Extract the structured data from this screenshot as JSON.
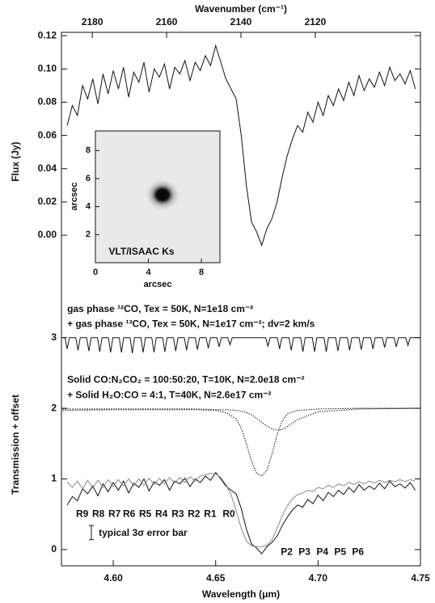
{
  "chart_data": [
    {
      "type": "line",
      "x2label": "Wavenumber (cm⁻¹)",
      "ylabel": "Flux (Jy)",
      "xlim": [
        4.5747,
        4.75
      ],
      "x2lim": [
        2188.3,
        2091.7
      ],
      "x2ticks": [
        2180,
        2160,
        2140,
        2120
      ],
      "ylim": [
        -0.0335,
        0.122
      ],
      "yticks": [
        {
          "value": 0.0,
          "label": "0.00"
        },
        {
          "value": 0.02,
          "label": "0.02"
        },
        {
          "value": 0.04,
          "label": "0.04"
        },
        {
          "value": 0.06,
          "label": "0.06"
        },
        {
          "value": 0.08,
          "label": "0.08"
        },
        {
          "value": 0.1,
          "label": "0.10"
        },
        {
          "value": 0.12,
          "label": "0.12"
        }
      ],
      "series": [
        {
          "color": "#111111",
          "style": "solid",
          "x": [
            4.5775,
            4.58,
            4.5825,
            4.585,
            4.5875,
            4.59,
            4.5925,
            4.595,
            4.5975,
            4.6,
            4.6025,
            4.605,
            4.6075,
            4.61,
            4.6125,
            4.615,
            4.6175,
            4.62,
            4.6225,
            4.625,
            4.6275,
            4.63,
            4.6325,
            4.635,
            4.6375,
            4.64,
            4.6425,
            4.645,
            4.6475,
            4.65,
            4.6525,
            4.655,
            4.6575,
            4.66,
            4.6625,
            4.665,
            4.6675,
            4.67,
            4.6725,
            4.675,
            4.6775,
            4.68,
            4.6825,
            4.685,
            4.6875,
            4.69,
            4.6925,
            4.695,
            4.6975,
            4.7,
            4.7025,
            4.705,
            4.7075,
            4.71,
            4.7125,
            4.715,
            4.7175,
            4.72,
            4.7225,
            4.725,
            4.7275,
            4.73,
            4.7325,
            4.735,
            4.7375,
            4.74,
            4.7425,
            4.745,
            4.7475
          ],
          "values": [
            0.066,
            0.078,
            0.072,
            0.09,
            0.082,
            0.094,
            0.079,
            0.097,
            0.085,
            0.099,
            0.088,
            0.101,
            0.083,
            0.098,
            0.092,
            0.104,
            0.086,
            0.1,
            0.095,
            0.103,
            0.088,
            0.101,
            0.097,
            0.105,
            0.093,
            0.104,
            0.099,
            0.108,
            0.102,
            0.114,
            0.104,
            0.094,
            0.088,
            0.082,
            0.06,
            0.03,
            0.008,
            0.002,
            -0.006,
            0.004,
            0.01,
            0.02,
            0.035,
            0.048,
            0.058,
            0.066,
            0.062,
            0.074,
            0.068,
            0.08,
            0.072,
            0.084,
            0.078,
            0.088,
            0.081,
            0.092,
            0.084,
            0.096,
            0.087,
            0.094,
            0.089,
            0.098,
            0.09,
            0.101,
            0.093,
            0.097,
            0.091,
            0.099,
            0.088
          ]
        }
      ]
    },
    {
      "type": "line",
      "xlabel": "Wavelength (μm)",
      "ylabel": "Transmission + offset",
      "xlim": [
        4.5747,
        4.75
      ],
      "xticks": [
        {
          "value": 4.6,
          "label": "4.60"
        },
        {
          "value": 4.65,
          "label": "4.65"
        },
        {
          "value": 4.7,
          "label": "4.70"
        },
        {
          "value": 4.75,
          "label": "4.75"
        }
      ],
      "ylim": [
        -0.23,
        3.66
      ],
      "yticks": [
        0,
        1,
        2,
        3
      ],
      "series": [
        {
          "color": "#111111",
          "style": "solid",
          "x": [
            4.5752,
            4.5764,
            4.5775,
            4.5786,
            4.5817,
            4.5828,
            4.5839,
            4.587,
            4.5881,
            4.5892,
            4.5923,
            4.5934,
            4.5945,
            4.5976,
            4.5987,
            4.5998,
            4.6029,
            4.604,
            4.6051,
            4.6082,
            4.6093,
            4.6104,
            4.6135,
            4.6146,
            4.6157,
            4.6188,
            4.6199,
            4.621,
            4.6241,
            4.6252,
            4.6263,
            4.6294,
            4.6305,
            4.6316,
            4.6347,
            4.6358,
            4.6369,
            4.64,
            4.6411,
            4.6422,
            4.6453,
            4.6464,
            4.6475,
            4.6506,
            4.6517,
            4.6528,
            4.6559,
            4.657,
            4.6581,
            4.6744,
            4.6755,
            4.6766,
            4.6801,
            4.6812,
            4.6823,
            4.6858,
            4.6869,
            4.688,
            4.6915,
            4.6926,
            4.6937,
            4.6972,
            4.6983,
            4.6994,
            4.7029,
            4.704,
            4.7051,
            4.7086,
            4.7097,
            4.7108,
            4.7143,
            4.7154,
            4.7165,
            4.72,
            4.7211,
            4.7222,
            4.7257,
            4.7268,
            4.7279,
            4.7314,
            4.7325,
            4.7336,
            4.7371,
            4.7382,
            4.7393,
            4.7428,
            4.7439,
            4.745,
            4.7495
          ],
          "values": [
            3,
            3,
            2.84,
            3,
            3,
            2.82,
            3,
            3,
            2.81,
            3,
            3,
            2.8,
            3,
            3,
            2.79,
            3,
            3,
            2.79,
            3,
            3,
            2.78,
            3,
            3,
            2.79,
            3,
            3,
            2.79,
            3,
            3,
            2.8,
            3,
            3,
            2.81,
            3,
            3,
            2.82,
            3,
            3,
            2.83,
            3,
            3,
            2.85,
            3,
            3,
            2.87,
            3,
            3,
            2.9,
            3,
            3,
            2.88,
            3,
            3,
            2.84,
            3,
            3,
            2.82,
            3,
            3,
            2.8,
            3,
            3,
            2.8,
            3,
            3,
            2.8,
            3,
            3,
            2.81,
            3,
            3,
            2.82,
            3,
            3,
            2.83,
            3,
            3,
            2.84,
            3,
            3,
            2.86,
            3,
            3,
            2.87,
            3,
            3,
            2.89,
            3,
            3
          ]
        },
        {
          "color": "#222222",
          "style": "dotted",
          "x": [
            4.5752,
            4.6,
            4.62,
            4.64,
            4.65,
            4.655,
            4.66,
            4.6625,
            4.665,
            4.6675,
            4.67,
            4.6725,
            4.675,
            4.6775,
            4.68,
            4.6825,
            4.685,
            4.69,
            4.7,
            4.72,
            4.7495
          ],
          "values": [
            1.97,
            1.98,
            1.98,
            1.98,
            1.97,
            1.94,
            1.85,
            1.72,
            1.5,
            1.25,
            1.08,
            1.04,
            1.12,
            1.35,
            1.62,
            1.82,
            1.92,
            1.97,
            1.99,
            2.0,
            2.0
          ]
        },
        {
          "color": "#222222",
          "style": "dotted",
          "x": [
            4.5752,
            4.6,
            4.62,
            4.64,
            4.65,
            4.655,
            4.66,
            4.6625,
            4.665,
            4.6675,
            4.67,
            4.6725,
            4.675,
            4.6775,
            4.68,
            4.6825,
            4.685,
            4.69,
            4.7,
            4.72,
            4.7495
          ],
          "values": [
            1.99,
            1.99,
            1.99,
            1.99,
            1.98,
            1.98,
            1.97,
            1.96,
            1.94,
            1.91,
            1.86,
            1.8,
            1.75,
            1.71,
            1.69,
            1.7,
            1.74,
            1.84,
            1.95,
            1.99,
            2.0
          ]
        },
        {
          "color": "#111111",
          "style": "solid",
          "x": [
            4.5775,
            4.58,
            4.5825,
            4.585,
            4.5875,
            4.59,
            4.5925,
            4.595,
            4.5975,
            4.6,
            4.6025,
            4.605,
            4.6075,
            4.61,
            4.6125,
            4.615,
            4.6175,
            4.62,
            4.6225,
            4.625,
            4.6275,
            4.63,
            4.6325,
            4.635,
            4.6375,
            4.64,
            4.6425,
            4.645,
            4.6475,
            4.65,
            4.6525,
            4.655,
            4.6575,
            4.66,
            4.6625,
            4.665,
            4.6675,
            4.67,
            4.6725,
            4.675,
            4.6775,
            4.68,
            4.6825,
            4.685,
            4.6875,
            4.69,
            4.6925,
            4.695,
            4.6975,
            4.7,
            4.7025,
            4.705,
            4.7075,
            4.71,
            4.7125,
            4.715,
            4.7175,
            4.72,
            4.7225,
            4.725,
            4.7275,
            4.73,
            4.7325,
            4.735,
            4.7375,
            4.74,
            4.7425,
            4.745,
            4.7475
          ],
          "values": [
            0.63,
            0.75,
            0.69,
            0.86,
            0.79,
            0.9,
            0.76,
            0.93,
            0.82,
            0.95,
            0.84,
            0.97,
            0.8,
            0.94,
            0.88,
            1.0,
            0.83,
            0.96,
            0.91,
            0.99,
            0.84,
            0.97,
            0.93,
            1.01,
            0.89,
            1.0,
            0.95,
            1.04,
            0.98,
            1.09,
            1.0,
            0.9,
            0.84,
            0.79,
            0.58,
            0.29,
            0.08,
            0.02,
            -0.06,
            0.04,
            0.1,
            0.19,
            0.34,
            0.46,
            0.56,
            0.63,
            0.6,
            0.71,
            0.65,
            0.77,
            0.69,
            0.81,
            0.75,
            0.84,
            0.78,
            0.88,
            0.81,
            0.92,
            0.84,
            0.9,
            0.85,
            0.94,
            0.86,
            0.97,
            0.89,
            0.93,
            0.87,
            0.95,
            0.84
          ]
        },
        {
          "color": "#8a8a8a",
          "style": "solid",
          "x": [
            4.5775,
            4.58,
            4.5825,
            4.585,
            4.5875,
            4.59,
            4.5925,
            4.595,
            4.5975,
            4.6,
            4.6025,
            4.605,
            4.6075,
            4.61,
            4.6125,
            4.615,
            4.6175,
            4.62,
            4.6225,
            4.625,
            4.6275,
            4.63,
            4.6325,
            4.635,
            4.6375,
            4.64,
            4.6425,
            4.645,
            4.6475,
            4.65,
            4.6525,
            4.655,
            4.6575,
            4.66,
            4.6625,
            4.665,
            4.6675,
            4.67,
            4.6725,
            4.675,
            4.6775,
            4.68,
            4.6825,
            4.685,
            4.6875,
            4.69,
            4.6925,
            4.695,
            4.6975,
            4.7,
            4.7025,
            4.705,
            4.7075,
            4.71,
            4.7125,
            4.715,
            4.7175,
            4.72,
            4.7225,
            4.725,
            4.7275,
            4.73,
            4.7325,
            4.735,
            4.7375,
            4.74,
            4.7425,
            4.745,
            4.7475
          ],
          "values": [
            0.96,
            0.88,
            0.97,
            0.86,
            0.98,
            0.87,
            0.98,
            0.88,
            0.99,
            0.89,
            0.99,
            0.9,
            1.0,
            0.9,
            1.0,
            0.91,
            1.01,
            0.92,
            1.01,
            0.93,
            1.02,
            0.94,
            1.02,
            0.95,
            1.03,
            0.97,
            1.04,
            1.06,
            1.08,
            1.07,
            1.02,
            0.92,
            0.78,
            0.55,
            0.3,
            0.12,
            0.05,
            0.04,
            0.04,
            0.06,
            0.14,
            0.3,
            0.48,
            0.62,
            0.72,
            0.78,
            0.8,
            0.84,
            0.82,
            0.88,
            0.86,
            0.91,
            0.88,
            0.93,
            0.9,
            0.95,
            0.92,
            0.96,
            0.93,
            0.97,
            0.94,
            0.98,
            0.95,
            0.98,
            0.96,
            0.99,
            0.96,
            0.99,
            0.97
          ]
        }
      ],
      "annotations": [
        {
          "text": "gas phase ¹²CO, Tex = 50K, N=1e18 cm⁻²",
          "x": 4.5775,
          "y": 3.4
        },
        {
          "text": "+ gas phase ¹³CO, Tex = 50K, N=1e17 cm⁻²; dv=2 km/s",
          "x": 4.5775,
          "y": 3.19
        },
        {
          "text": "Solid CO:N₂CO₂ = 100:50:20, T=10K, N=2.0e18 cm⁻²",
          "x": 4.5775,
          "y": 2.4
        },
        {
          "text": "+ Solid H₂O:CO = 4:1, T=40K, N=2.6e17 cm⁻²",
          "x": 4.5775,
          "y": 2.18
        },
        {
          "text": "R9",
          "x": 4.5818,
          "y": 0.5
        },
        {
          "text": "R8",
          "x": 4.5897,
          "y": 0.5
        },
        {
          "text": "R7",
          "x": 4.5976,
          "y": 0.5
        },
        {
          "text": "R6",
          "x": 4.6047,
          "y": 0.5
        },
        {
          "text": "R5",
          "x": 4.6126,
          "y": 0.5
        },
        {
          "text": "R4",
          "x": 4.6205,
          "y": 0.5
        },
        {
          "text": "R3",
          "x": 4.6285,
          "y": 0.5
        },
        {
          "text": "R2",
          "x": 4.6364,
          "y": 0.5
        },
        {
          "text": "R1",
          "x": 4.6443,
          "y": 0.5
        },
        {
          "text": "R0",
          "x": 4.6534,
          "y": 0.5
        },
        {
          "text": "P2",
          "x": 4.6818,
          "y": -0.04
        },
        {
          "text": "P3",
          "x": 4.6905,
          "y": -0.04
        },
        {
          "text": "P4",
          "x": 4.6992,
          "y": -0.04
        },
        {
          "text": "P5",
          "x": 4.7079,
          "y": -0.04
        },
        {
          "text": "P6",
          "x": 4.7166,
          "y": -0.04
        },
        {
          "text": "typical 3σ error bar",
          "x": 4.5929,
          "y": 0.23
        }
      ],
      "error_bar": {
        "x": 4.5893,
        "value": 0.24,
        "error": 0.1
      }
    },
    {
      "type": "image",
      "title": "VLT/ISAAC Ks",
      "xlabel": "arcsec",
      "ylabel": "arcsec",
      "xlim": [
        0,
        9.4
      ],
      "ylim": [
        0,
        9.4
      ],
      "xticks": [
        0,
        4,
        8
      ],
      "yticks": [
        2,
        4,
        6,
        8
      ]
    }
  ]
}
